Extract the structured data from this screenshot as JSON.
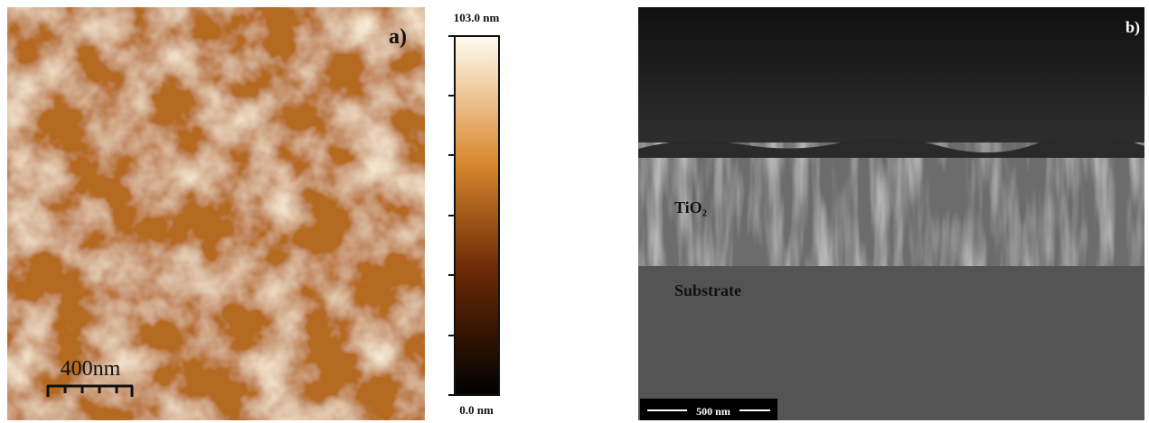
{
  "panel_a": {
    "label": "a)",
    "colorbar_max": "103.0 nm",
    "colorbar_min": "0.0 nm",
    "scale_bar": "400nm"
  },
  "panel_b": {
    "label": "b)",
    "layer_top": "TiO₂",
    "layer_bottom": "Substrate",
    "scale_bar": "500 nm"
  }
}
